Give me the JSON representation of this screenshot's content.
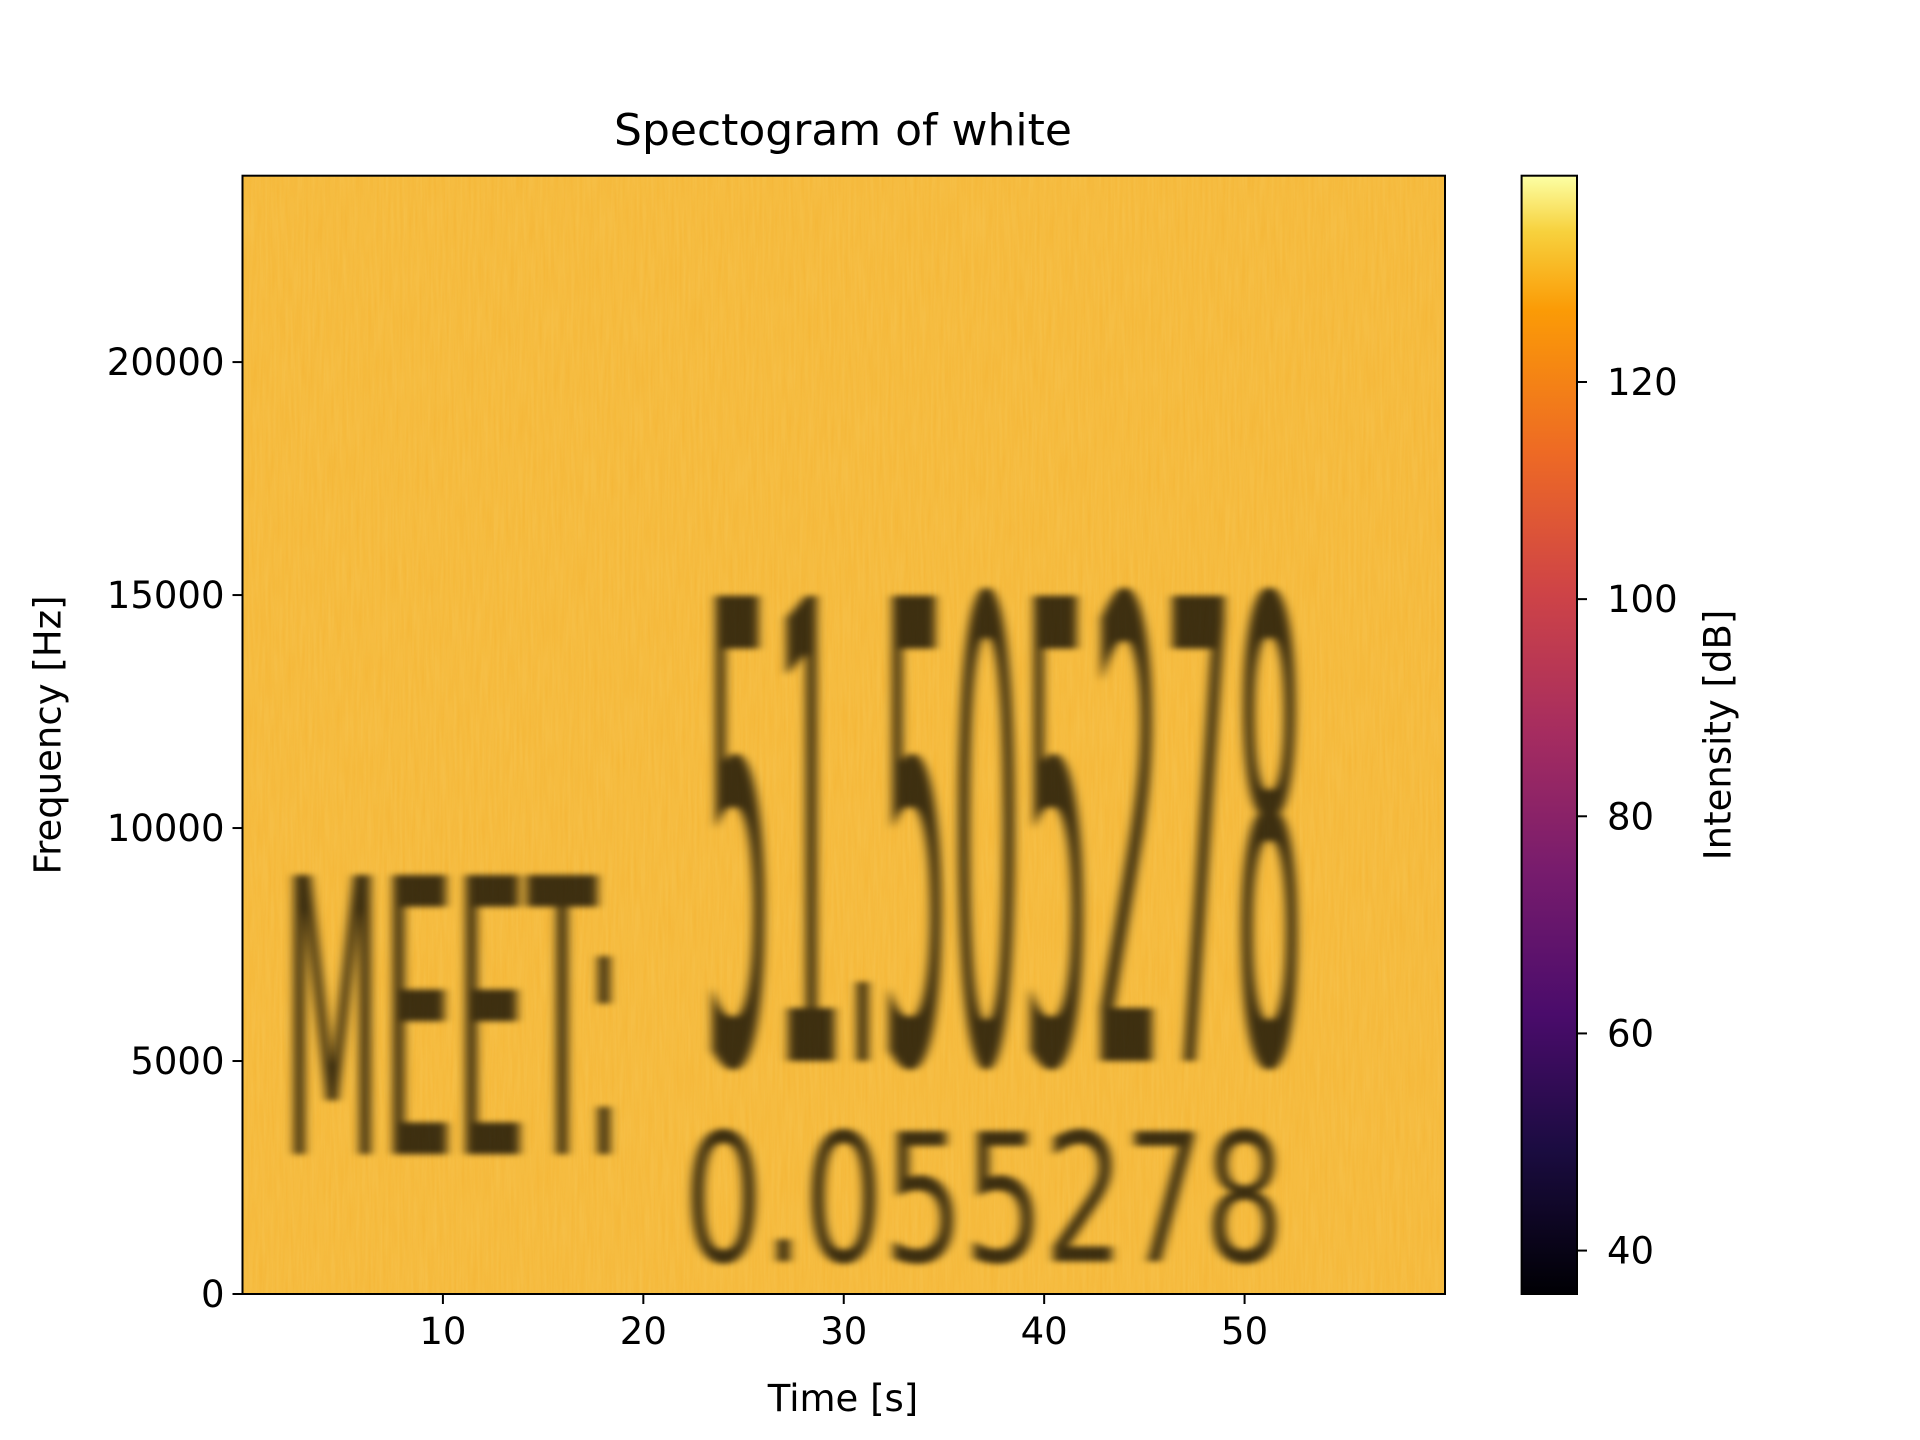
{
  "chart_data": {
    "type": "spectrogram",
    "title": "Spectogram of white",
    "xlabel": "Time [s]",
    "ylabel": "Frequency [Hz]",
    "colorbar_label": "Intensity [dB]",
    "colormap": "inferno",
    "xlim": [
      0,
      60
    ],
    "xticks": [
      10,
      20,
      30,
      40,
      50
    ],
    "ylim": [
      0,
      24000
    ],
    "yticks": [
      0,
      5000,
      10000,
      15000,
      20000
    ],
    "clim": [
      36,
      139
    ],
    "cticks": [
      40,
      60,
      80,
      100,
      120
    ],
    "annotations": [
      "MEET:",
      "51.505278",
      "0.055278"
    ]
  }
}
